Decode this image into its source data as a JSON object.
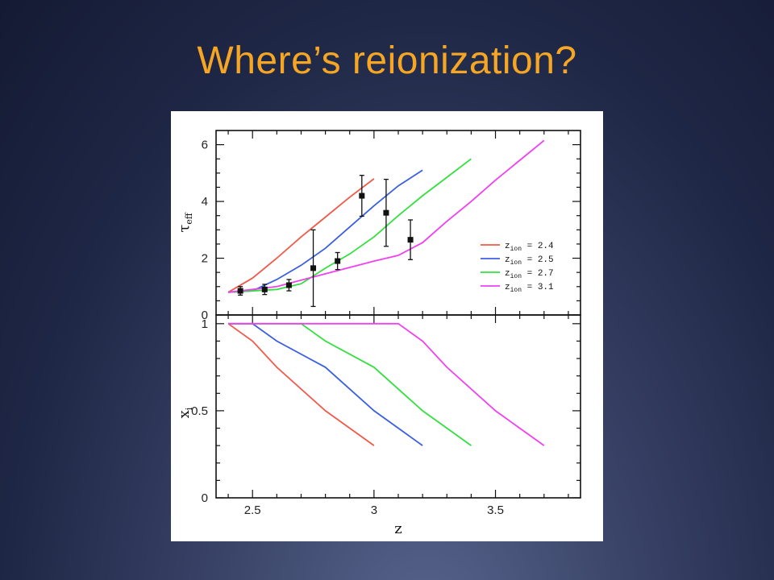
{
  "slide": {
    "title": "Where’s reionization?"
  },
  "chart_data": [
    {
      "type": "line",
      "panel": "top",
      "ylabel": "τ",
      "ylabel_sub": "eff",
      "xlim": [
        2.35,
        3.85
      ],
      "ylim": [
        0,
        6.5
      ],
      "yticks": [
        0,
        2,
        4,
        6
      ],
      "series": [
        {
          "name": "z",
          "name_sub": "ion",
          "name_suffix": " = 2.4",
          "color": "#f05a4a",
          "x": [
            2.4,
            2.5,
            2.6,
            2.7,
            2.8,
            2.9,
            3.0
          ],
          "y": [
            0.8,
            1.3,
            2.0,
            2.75,
            3.45,
            4.15,
            4.8
          ]
        },
        {
          "name": "z",
          "name_sub": "ion",
          "name_suffix": " = 2.5",
          "color": "#3b5fe0",
          "x": [
            2.4,
            2.5,
            2.6,
            2.7,
            2.8,
            2.9,
            3.0,
            3.1,
            3.2
          ],
          "y": [
            0.8,
            0.85,
            1.25,
            1.75,
            2.35,
            3.1,
            3.85,
            4.55,
            5.1
          ]
        },
        {
          "name": "z",
          "name_sub": "ion",
          "name_suffix": " = 2.7",
          "color": "#33e040",
          "x": [
            2.4,
            2.6,
            2.7,
            2.8,
            2.9,
            3.0,
            3.1,
            3.2,
            3.3,
            3.4
          ],
          "y": [
            0.8,
            0.9,
            1.1,
            1.65,
            2.15,
            2.75,
            3.5,
            4.2,
            4.85,
            5.5
          ]
        },
        {
          "name": "z",
          "name_sub": "ion",
          "name_suffix": " = 3.1",
          "color": "#f040f0",
          "x": [
            2.4,
            2.6,
            2.8,
            3.0,
            3.1,
            3.2,
            3.3,
            3.4,
            3.5,
            3.6,
            3.7
          ],
          "y": [
            0.8,
            1.0,
            1.45,
            1.9,
            2.1,
            2.55,
            3.3,
            4.0,
            4.75,
            5.45,
            6.15
          ]
        }
      ],
      "observations": {
        "x": [
          2.45,
          2.55,
          2.65,
          2.75,
          2.85,
          2.95,
          3.05,
          3.15
        ],
        "y": [
          0.85,
          0.9,
          1.05,
          1.65,
          1.9,
          4.2,
          3.6,
          2.65
        ],
        "yerr": [
          0.15,
          0.18,
          0.2,
          1.35,
          0.3,
          0.72,
          1.18,
          0.7
        ]
      },
      "legend_position": "center-right"
    },
    {
      "type": "line",
      "panel": "bottom",
      "ylabel": "x",
      "ylabel_sub": "i",
      "xlabel": "z",
      "xlim": [
        2.35,
        3.85
      ],
      "ylim": [
        0,
        1.05
      ],
      "xticks": [
        2.5,
        3,
        3.5
      ],
      "xtick_labels": [
        "2.5",
        "3",
        "3.5"
      ],
      "yticks": [
        0,
        0.5,
        1
      ],
      "ytick_labels": [
        "0",
        "0.5",
        "1"
      ],
      "series": [
        {
          "color": "#f05a4a",
          "x": [
            2.4,
            2.5,
            2.6,
            2.8,
            3.0
          ],
          "y": [
            1.0,
            0.9,
            0.75,
            0.5,
            0.3
          ]
        },
        {
          "color": "#3b5fe0",
          "x": [
            2.4,
            2.5,
            2.6,
            2.8,
            3.0,
            3.2
          ],
          "y": [
            1.0,
            1.0,
            0.9,
            0.75,
            0.5,
            0.3
          ]
        },
        {
          "color": "#33e040",
          "x": [
            2.4,
            2.7,
            2.8,
            3.0,
            3.2,
            3.4
          ],
          "y": [
            1.0,
            1.0,
            0.9,
            0.75,
            0.5,
            0.3
          ]
        },
        {
          "color": "#f040f0",
          "x": [
            2.4,
            3.1,
            3.2,
            3.3,
            3.5,
            3.7
          ],
          "y": [
            1.0,
            1.0,
            0.9,
            0.75,
            0.5,
            0.3
          ]
        }
      ]
    }
  ]
}
